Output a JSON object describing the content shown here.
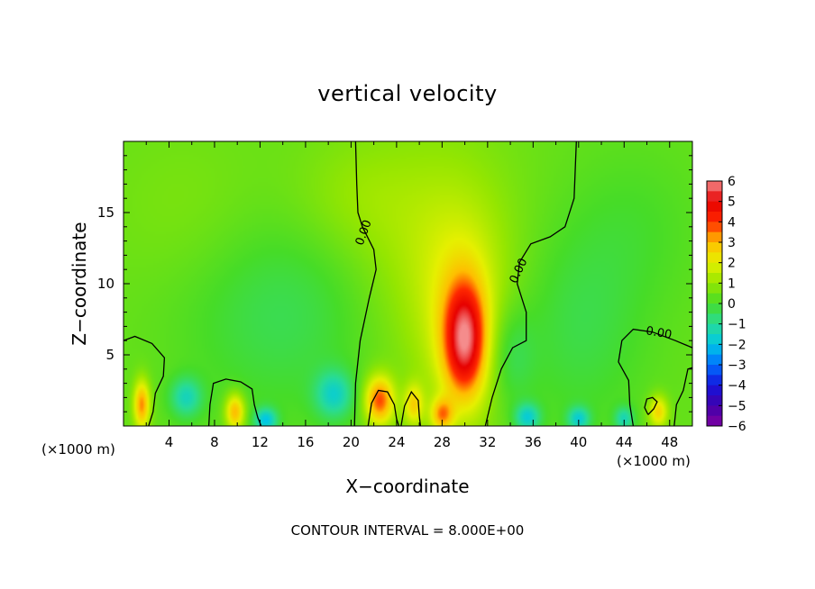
{
  "chart_data": {
    "type": "heatmap",
    "title": "vertical velocity",
    "xlabel": "X−coordinate",
    "ylabel": "Z−coordinate",
    "x_unit_left": "(×1000 m)",
    "x_unit_right": "(×1000 m)",
    "footer": "CONTOUR INTERVAL = 8.000E+00",
    "xlim": [
      0,
      50
    ],
    "ylim": [
      0,
      20
    ],
    "x_ticks": [
      4,
      8,
      12,
      16,
      20,
      24,
      28,
      32,
      36,
      40,
      44,
      48
    ],
    "x_tick_labels": [
      "4",
      "8",
      "12",
      "16",
      "20",
      "24",
      "28",
      "32",
      "36",
      "40",
      "44",
      "48"
    ],
    "y_ticks": [
      5,
      10,
      15
    ],
    "y_tick_labels": [
      "5",
      "10",
      "15"
    ],
    "contour_labels": [
      "0.00",
      "0.00",
      "0.00"
    ],
    "colorbar": {
      "min": -6,
      "max": 6,
      "ticks": [
        6,
        5,
        4,
        3,
        2,
        1,
        0,
        -1,
        -2,
        -3,
        -4,
        -5,
        -6
      ],
      "tick_labels": [
        "6",
        "5",
        "4",
        "3",
        "2",
        "1",
        "0",
        "−1",
        "−2",
        "−3",
        "−4",
        "−5",
        "−6"
      ]
    },
    "blobs": [
      {
        "x": 30.0,
        "z": 6.0,
        "sx": 1.3,
        "sz": 2.8,
        "v": 4.2
      },
      {
        "x": 29.8,
        "z": 7.5,
        "sx": 2.6,
        "sz": 5.0,
        "v": 1.2
      },
      {
        "x": 27.5,
        "z": 12.0,
        "sx": 5.0,
        "sz": 6.0,
        "v": 0.9
      },
      {
        "x": 22.5,
        "z": 1.8,
        "sx": 0.9,
        "sz": 1.2,
        "v": 3.4
      },
      {
        "x": 9.8,
        "z": 1.0,
        "sx": 0.6,
        "sz": 0.9,
        "v": 2.8
      },
      {
        "x": 1.6,
        "z": 1.5,
        "sx": 0.5,
        "sz": 1.2,
        "v": 3.0
      },
      {
        "x": 25.5,
        "z": 1.5,
        "sx": 0.6,
        "sz": 1.0,
        "v": 2.0
      },
      {
        "x": 28.0,
        "z": 0.8,
        "sx": 0.7,
        "sz": 0.8,
        "v": 2.5
      },
      {
        "x": 47.0,
        "z": 1.0,
        "sx": 0.6,
        "sz": 0.8,
        "v": 2.2
      },
      {
        "x": 14.0,
        "z": 8.0,
        "sx": 6.0,
        "sz": 5.0,
        "v": -0.8
      },
      {
        "x": 40.0,
        "z": 7.0,
        "sx": 4.0,
        "sz": 5.0,
        "v": -0.7
      },
      {
        "x": 18.5,
        "z": 2.2,
        "sx": 1.2,
        "sz": 1.2,
        "v": -1.8
      },
      {
        "x": 5.5,
        "z": 2.0,
        "sx": 1.0,
        "sz": 1.0,
        "v": -1.7
      },
      {
        "x": 12.5,
        "z": 0.4,
        "sx": 0.7,
        "sz": 0.6,
        "v": -2.2
      },
      {
        "x": 35.5,
        "z": 0.6,
        "sx": 0.8,
        "sz": 0.7,
        "v": -2.0
      },
      {
        "x": 40.0,
        "z": 0.5,
        "sx": 0.7,
        "sz": 0.6,
        "v": -1.9
      },
      {
        "x": 44.0,
        "z": 0.5,
        "sx": 0.6,
        "sz": 0.6,
        "v": -1.6
      },
      {
        "x": 34.0,
        "z": 5.0,
        "sx": 1.5,
        "sz": 2.5,
        "v": -0.9
      },
      {
        "x": 20.0,
        "z": 16.0,
        "sx": 4.0,
        "sz": 3.0,
        "v": 0.5
      },
      {
        "x": 45.0,
        "z": 14.0,
        "sx": 4.0,
        "sz": 4.0,
        "v": -0.35
      },
      {
        "x": 6.0,
        "z": 15.0,
        "sx": 5.0,
        "sz": 4.0,
        "v": 0.3
      }
    ],
    "background_value": 0.4,
    "contours": [
      [
        [
          20.3,
          0
        ],
        [
          20.4,
          3
        ],
        [
          20.8,
          6
        ],
        [
          21.6,
          9
        ],
        [
          22.2,
          11
        ],
        [
          22.0,
          12.4
        ],
        [
          21.5,
          13.2
        ],
        [
          21.0,
          14
        ],
        [
          20.6,
          15
        ],
        [
          20.5,
          17
        ],
        [
          20.4,
          20
        ]
      ],
      [
        [
          31.8,
          0
        ],
        [
          32.4,
          2
        ],
        [
          33.2,
          4
        ],
        [
          34.2,
          5.5
        ],
        [
          35.4,
          6
        ],
        [
          35.4,
          8
        ],
        [
          34.6,
          10
        ],
        [
          34.8,
          11.5
        ],
        [
          35.8,
          12.8
        ],
        [
          37.5,
          13.3
        ],
        [
          38.8,
          14
        ],
        [
          39.6,
          16
        ],
        [
          39.8,
          20
        ]
      ],
      [
        [
          0,
          6.0
        ],
        [
          1.0,
          6.3
        ],
        [
          2.5,
          5.8
        ],
        [
          3.6,
          4.8
        ],
        [
          3.5,
          3.5
        ],
        [
          2.8,
          2.3
        ],
        [
          2.6,
          1.0
        ],
        [
          2.2,
          0
        ]
      ],
      [
        [
          50,
          5.5
        ],
        [
          48.5,
          6.0
        ],
        [
          46.5,
          6.6
        ],
        [
          44.8,
          6.8
        ],
        [
          43.8,
          6.0
        ],
        [
          43.5,
          4.5
        ],
        [
          44.4,
          3.2
        ],
        [
          44.5,
          1.5
        ],
        [
          44.8,
          0
        ]
      ],
      [
        [
          7.5,
          0
        ],
        [
          7.6,
          1.5
        ],
        [
          7.9,
          3.0
        ],
        [
          9.0,
          3.3
        ],
        [
          10.3,
          3.1
        ],
        [
          11.3,
          2.6
        ],
        [
          11.5,
          1.5
        ],
        [
          11.8,
          0.6
        ],
        [
          12.1,
          0
        ]
      ],
      [
        [
          21.5,
          0
        ],
        [
          21.8,
          1.6
        ],
        [
          22.4,
          2.5
        ],
        [
          23.2,
          2.4
        ],
        [
          23.8,
          1.5
        ],
        [
          24.0,
          0.5
        ],
        [
          24.2,
          0
        ]
      ],
      [
        [
          24.4,
          0
        ],
        [
          24.7,
          1.4
        ],
        [
          25.3,
          2.4
        ],
        [
          25.9,
          1.8
        ],
        [
          26.0,
          0.7
        ],
        [
          26.1,
          0
        ]
      ],
      [
        [
          48.4,
          0
        ],
        [
          48.6,
          1.5
        ],
        [
          49.2,
          2.5
        ],
        [
          49.6,
          4.0
        ],
        [
          50,
          4.1
        ]
      ],
      [
        [
          46.1,
          0.8
        ],
        [
          46.6,
          1.2
        ],
        [
          46.9,
          1.7
        ],
        [
          46.5,
          2.0
        ],
        [
          46.0,
          1.9
        ],
        [
          45.8,
          1.3
        ],
        [
          46.1,
          0.8
        ]
      ]
    ]
  }
}
